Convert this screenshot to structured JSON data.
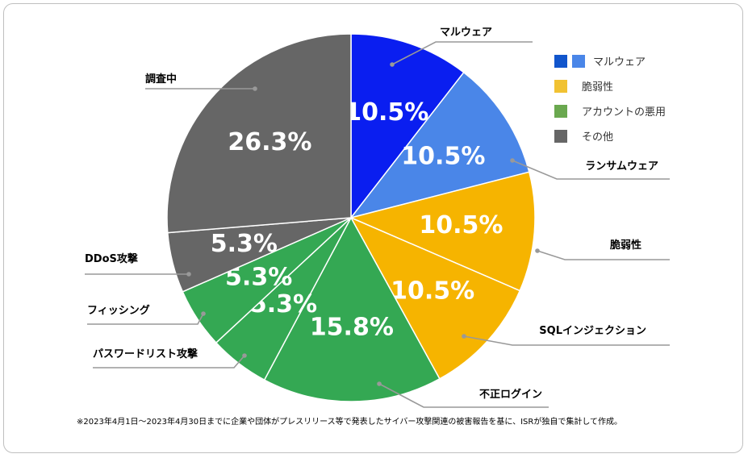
{
  "chart_data": {
    "type": "pie",
    "slices": [
      {
        "label": "マルウェア",
        "value": 10.5,
        "value_label": "10.5%",
        "color": "#0a1ef0"
      },
      {
        "label": "ランサムウェア",
        "value": 10.5,
        "value_label": "10.5%",
        "color": "#4a86e8"
      },
      {
        "label": "脆弱性",
        "value": 10.5,
        "value_label": "10.5%",
        "color": "#f6b400"
      },
      {
        "label": "SQLインジェクション",
        "value": 10.5,
        "value_label": "10.5%",
        "color": "#f6b400"
      },
      {
        "label": "不正ログイン",
        "value": 15.8,
        "value_label": "15.8%",
        "color": "#34a853"
      },
      {
        "label": "パスワードリスト攻撃",
        "value": 5.3,
        "value_label": "5.3%",
        "color": "#34a853"
      },
      {
        "label": "フィッシング",
        "value": 5.3,
        "value_label": "5.3%",
        "color": "#34a853"
      },
      {
        "label": "DDoS攻撃",
        "value": 5.3,
        "value_label": "5.3%",
        "color": "#666666"
      },
      {
        "label": "調査中",
        "value": 26.3,
        "value_label": "26.3%",
        "color": "#666666"
      }
    ],
    "legend": [
      {
        "label": "マルウェア",
        "colors": [
          "#1155cc",
          "#4a86e8"
        ]
      },
      {
        "label": "脆弱性",
        "colors": [
          "#f1c232"
        ]
      },
      {
        "label": "アカウントの悪用",
        "colors": [
          "#6aa84f"
        ]
      },
      {
        "label": "その他",
        "colors": [
          "#666666"
        ]
      }
    ],
    "legend_position": "top-right",
    "note": "※2023年4月1日～2023年4月30日までに企業や団体がプレスリリース等で発表したサイバー攻撃関連の被害報告を基に、ISRが独自で集計して作成。"
  }
}
